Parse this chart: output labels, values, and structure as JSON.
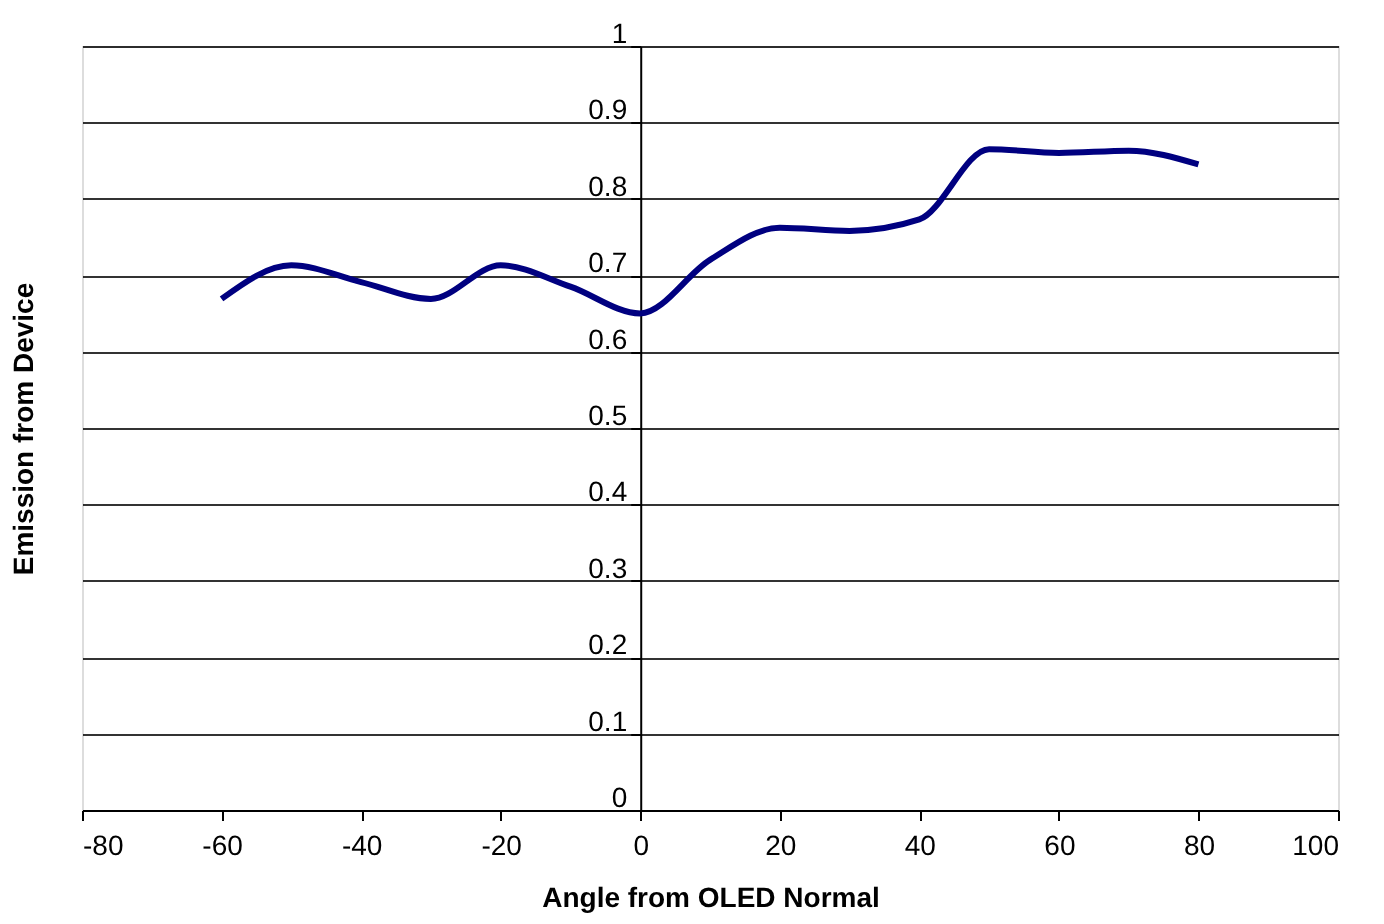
{
  "chart_data": {
    "type": "line",
    "xlabel": "Angle from OLED Normal",
    "ylabel": "Emission from Device",
    "x": [
      -60,
      -50,
      -40,
      -30,
      -20,
      -10,
      0,
      10,
      20,
      30,
      40,
      50,
      60,
      70,
      80
    ],
    "series": [
      {
        "color": "#000080",
        "values": [
          0.669,
          0.713,
          0.691,
          0.669,
          0.713,
          0.685,
          0.65,
          0.72,
          0.762,
          0.758,
          0.773,
          0.865,
          0.86,
          0.863,
          0.845
        ]
      }
    ],
    "xlim": [
      -80,
      100
    ],
    "ylim": [
      0,
      1
    ],
    "xticks": [
      -80,
      -60,
      -40,
      -20,
      0,
      20,
      40,
      60,
      80,
      100
    ],
    "yticks": [
      0,
      0.1,
      0.2,
      0.3,
      0.4,
      0.5,
      0.6,
      0.7,
      0.8,
      0.9,
      1
    ],
    "grid": "y",
    "line_style": "solid"
  }
}
